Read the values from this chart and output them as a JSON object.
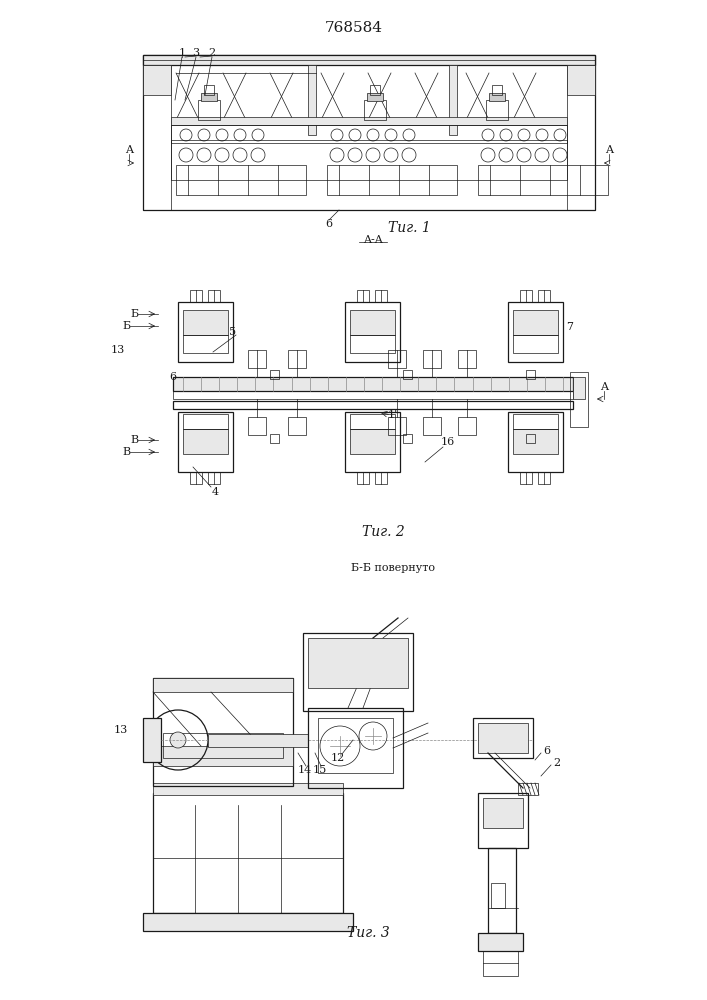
{
  "patent_number": "768584",
  "fig1_label": "Τиг. 1",
  "fig2_label": "Τиг. 2",
  "fig3_label": "Τиг. 3",
  "fig2_title": "A-A",
  "fig3_title": "Б-Б повернуто",
  "bg_color": "#ffffff",
  "lc": "#1a1a1a",
  "gray1": "#cccccc",
  "gray2": "#e8e8e8",
  "gray3": "#aaaaaa",
  "lw_t": 0.5,
  "lw_m": 0.9,
  "lw_k": 1.4,
  "fs_pat": 11,
  "fs_fig": 10,
  "fs_lbl": 8
}
